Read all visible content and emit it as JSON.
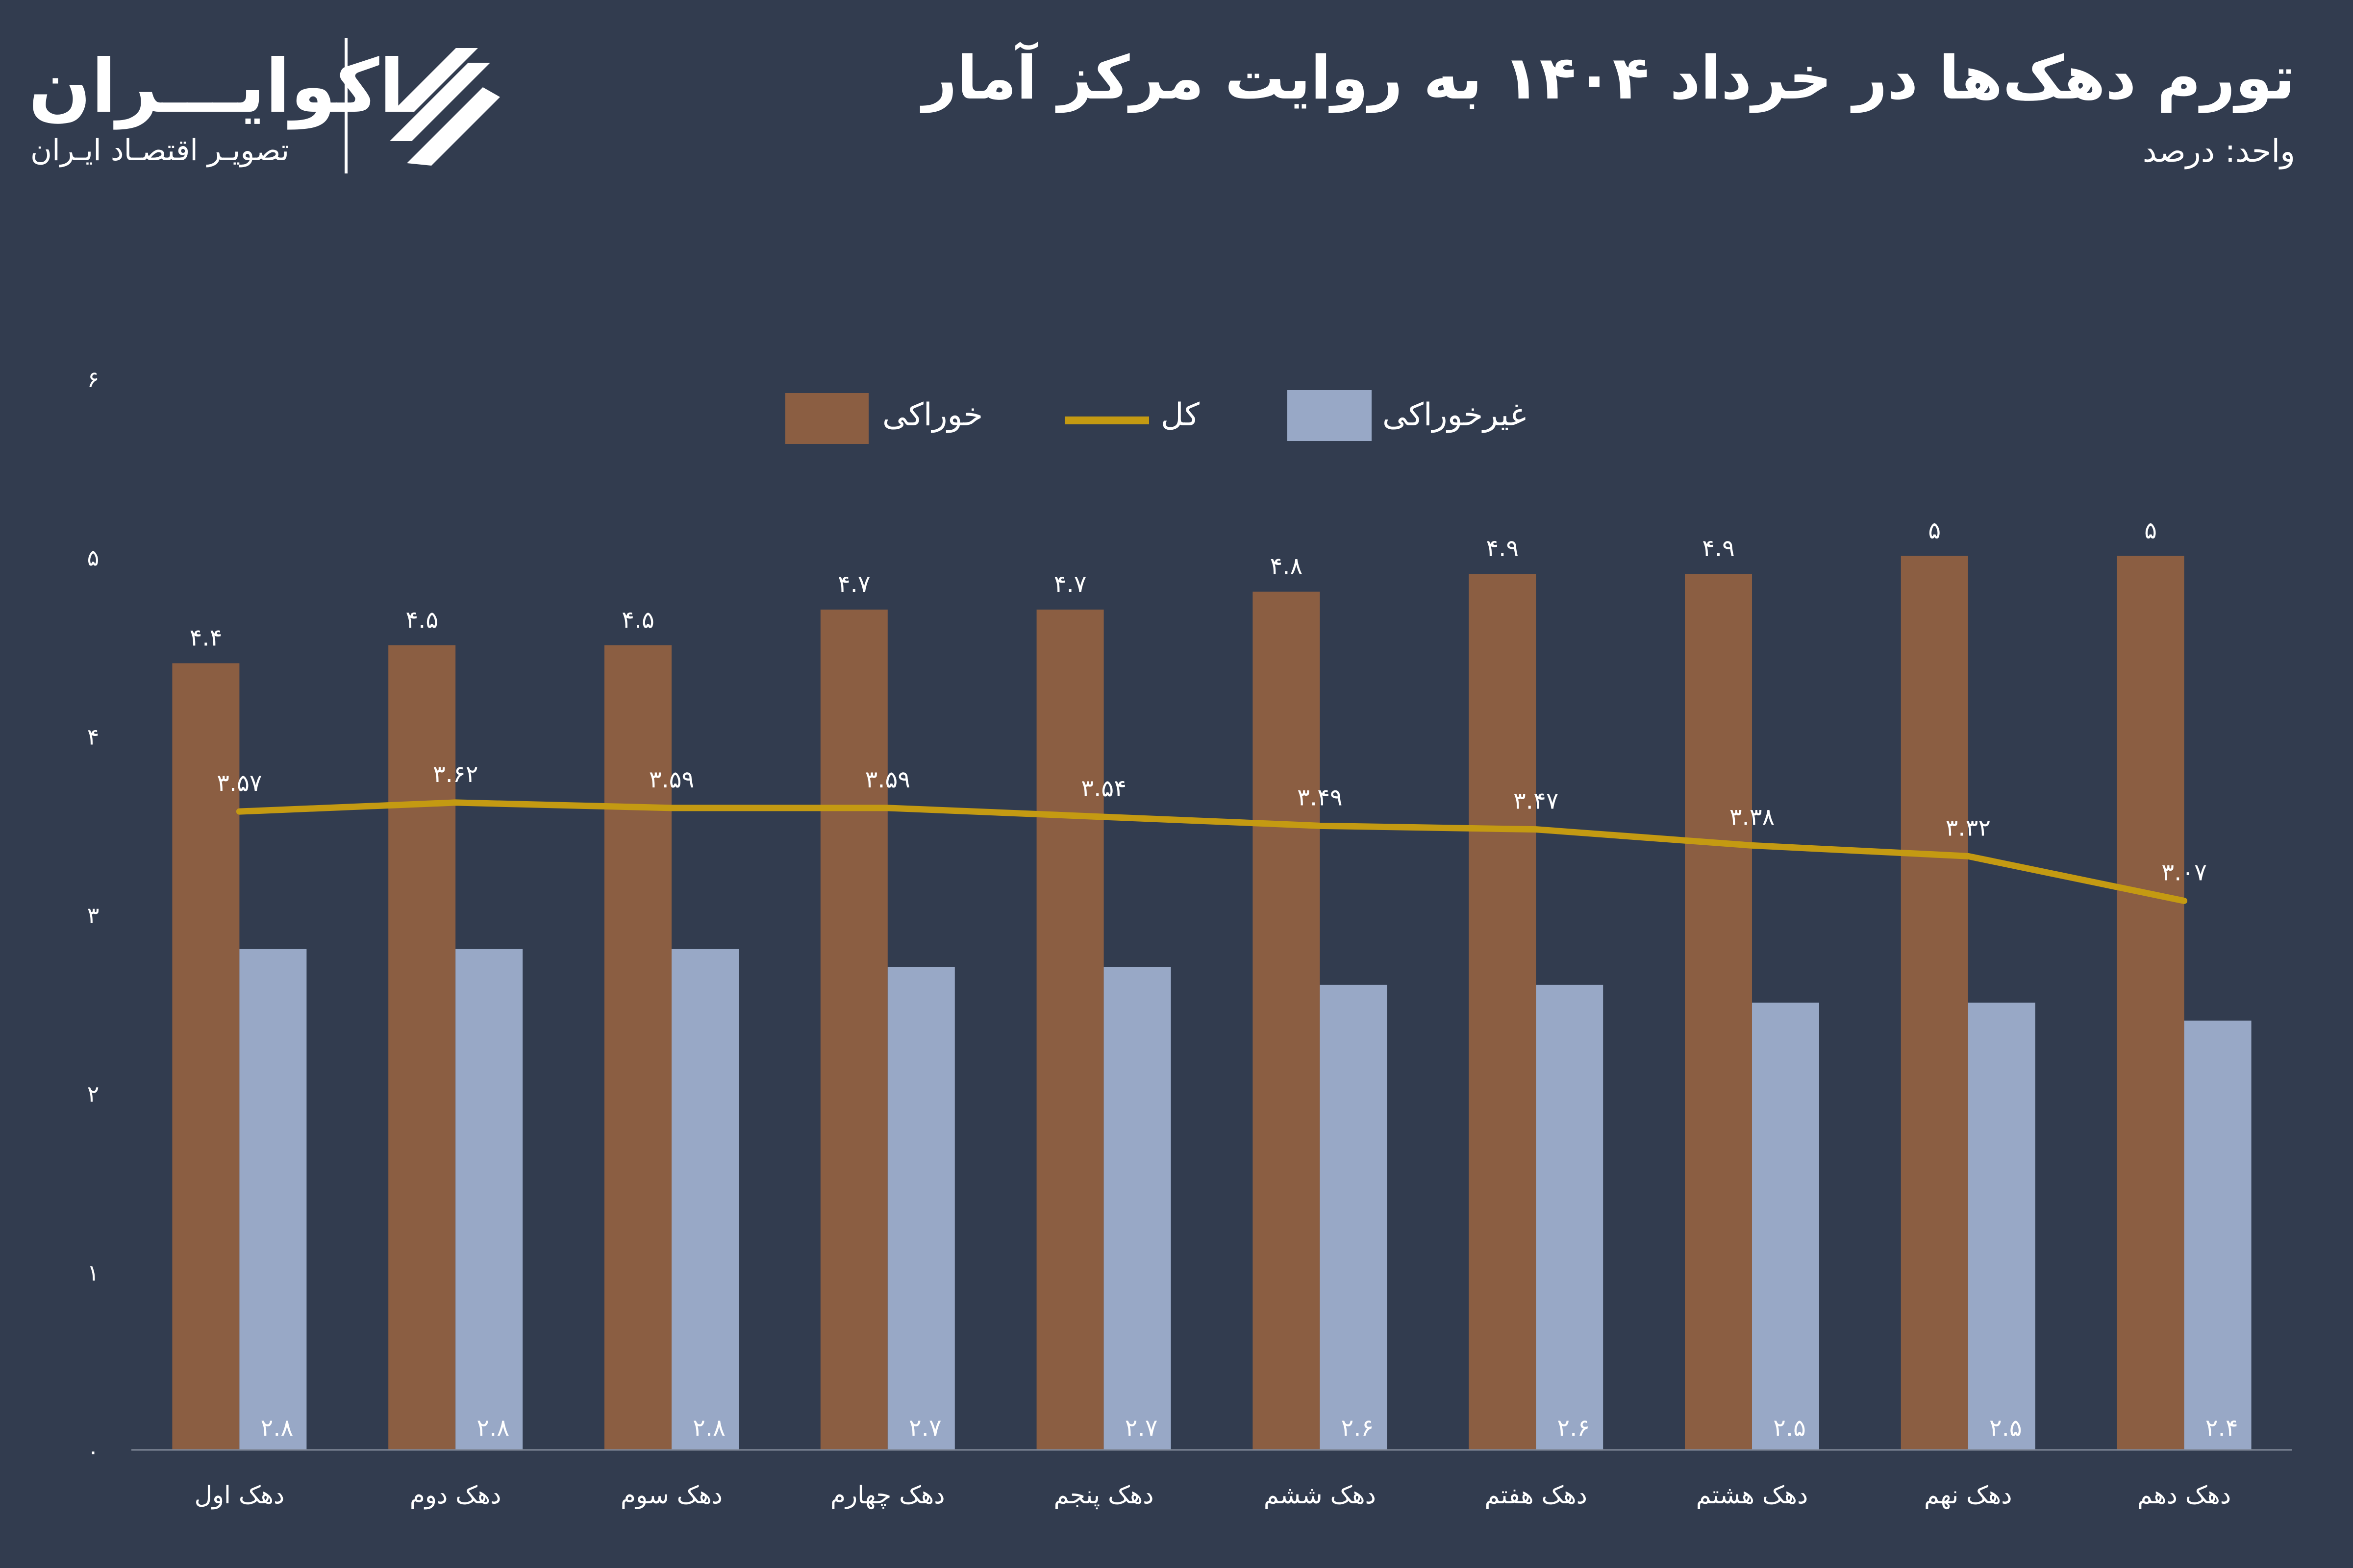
{
  "header": {
    "title": "تورم دهک‌ها در خرداد ۱۴۰۴ به روایت مرکز آمار",
    "unit": "واحد: درصد"
  },
  "logo": {
    "name": "اکوایـــران",
    "subtitle": "تصویـر اقتصـاد ایـران",
    "mark_icon": "ecoiran-logo-icon"
  },
  "colors": {
    "background": "#323c4f",
    "food": "#8b5e42",
    "nonfood": "#98a8c6",
    "total": "#c49a12",
    "axis": "#7e8696",
    "text": "#ffffff"
  },
  "legend": {
    "placement": "top-center",
    "items": [
      {
        "key": "food",
        "label": "خوراکی"
      },
      {
        "key": "total",
        "label": "کل"
      },
      {
        "key": "nonfood",
        "label": "غیرخوراکی"
      }
    ]
  },
  "chart_data": {
    "type": "bar",
    "categories": [
      "دهک اول",
      "دهک دوم",
      "دهک سوم",
      "دهک چهارم",
      "دهک پنجم",
      "دهک ششم",
      "دهک هفتم",
      "دهک هشتم",
      "دهک نهم",
      "دهک دهم"
    ],
    "ylim": [
      0,
      6
    ],
    "yticks": [
      0,
      1,
      2,
      3,
      4,
      5,
      6
    ],
    "ytick_labels": [
      "۰",
      "۱",
      "۲",
      "۳",
      "۴",
      "۵",
      "۶"
    ],
    "grid": false,
    "series": [
      {
        "name": "خوراکی",
        "key": "food",
        "type": "bar",
        "values": [
          4.4,
          4.5,
          4.5,
          4.7,
          4.7,
          4.8,
          4.9,
          4.9,
          5,
          5
        ],
        "labels": [
          "۴.۴",
          "۴.۵",
          "۴.۵",
          "۴.۷",
          "۴.۷",
          "۴.۸",
          "۴.۹",
          "۴.۹",
          "۵",
          "۵"
        ]
      },
      {
        "name": "غیرخوراکی",
        "key": "nonfood",
        "type": "bar",
        "values": [
          2.8,
          2.8,
          2.8,
          2.7,
          2.7,
          2.6,
          2.6,
          2.5,
          2.5,
          2.4
        ],
        "labels": [
          "۲.۸",
          "۲.۸",
          "۲.۸",
          "۲.۷",
          "۲.۷",
          "۲.۶",
          "۲.۶",
          "۲.۵",
          "۲.۵",
          "۲.۴"
        ]
      },
      {
        "name": "کل",
        "key": "total",
        "type": "line",
        "values": [
          3.57,
          3.62,
          3.59,
          3.59,
          3.54,
          3.49,
          3.47,
          3.38,
          3.32,
          3.07
        ],
        "labels": [
          "۳.۵۷",
          "۳.۶۲",
          "۳.۵۹",
          "۳.۵۹",
          "۳.۵۴",
          "۳.۴۹",
          "۳.۴۷",
          "۳.۳۸",
          "۳.۳۲",
          "۳.۰۷"
        ]
      }
    ]
  }
}
